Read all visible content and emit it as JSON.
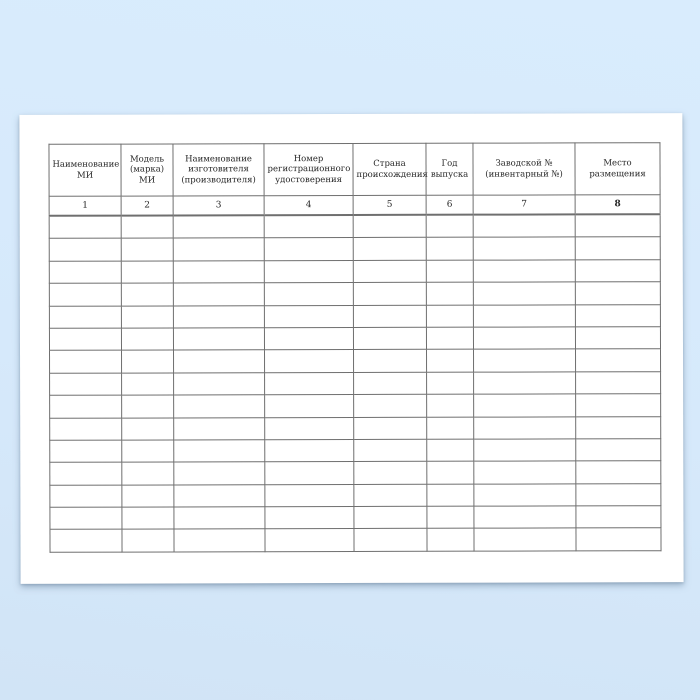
{
  "page": {
    "background_color": "#d6e9fb",
    "paper_color": "#ffffff"
  },
  "table": {
    "border_color": "#6f6f6f",
    "columns": [
      {
        "label": "Наименование МИ",
        "number": "1"
      },
      {
        "label": "Модель (марка) МИ",
        "number": "2"
      },
      {
        "label": "Наименование изготовителя (производителя)",
        "number": "3"
      },
      {
        "label": "Номер регистрационного удостоверения",
        "number": "4"
      },
      {
        "label": "Страна происхождения",
        "number": "5"
      },
      {
        "label": "Год выпуска",
        "number": "6"
      },
      {
        "label": "Заводской № (инвентарный №)",
        "number": "7"
      },
      {
        "label": "Место размещения",
        "number": "8",
        "number_bold": true
      }
    ],
    "empty_row_count": 15
  }
}
